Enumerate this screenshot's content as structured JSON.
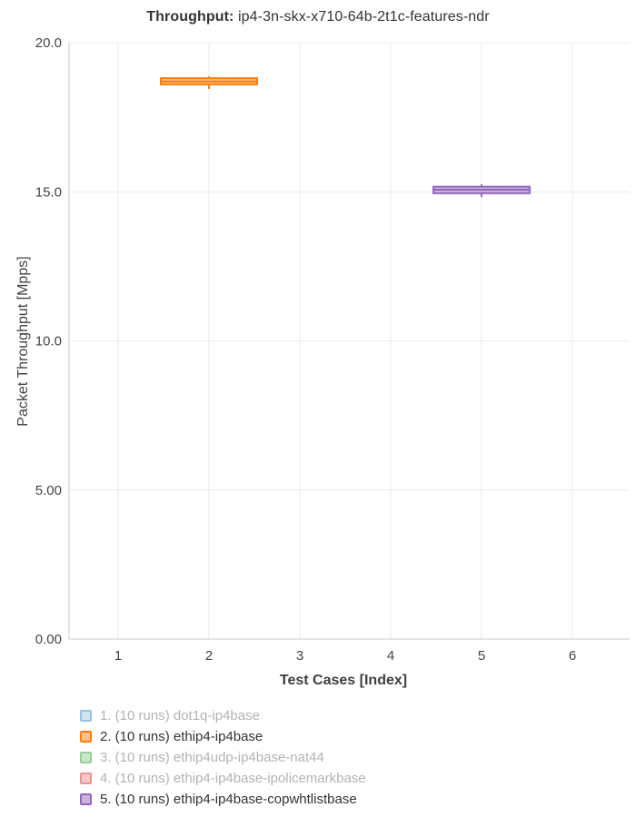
{
  "title": {
    "prefix": "Throughput:",
    "text": "ip4-3n-skx-x710-64b-2t1c-features-ndr"
  },
  "style": {
    "grid_color": "#ebebeb",
    "axis_color": "#c9c9c9",
    "tick_label_color": "#444444",
    "title_color": "#333333",
    "legend_active_color": "#333333",
    "legend_muted_color": "#b3b3b3"
  },
  "chart_data": {
    "type": "box",
    "title": "Throughput: ip4-3n-skx-x710-64b-2t1c-features-ndr",
    "xlabel": "Test Cases [Index]",
    "ylabel": "Packet Throughput [Mpps]",
    "xlim": [
      0.46,
      6.57
    ],
    "ylim": [
      0,
      20
    ],
    "grid": true,
    "legend_position": "bottom-left",
    "x_ticks": [
      {
        "value": 1,
        "label": "1"
      },
      {
        "value": 2,
        "label": "2"
      },
      {
        "value": 3,
        "label": "3"
      },
      {
        "value": 4,
        "label": "4"
      },
      {
        "value": 5,
        "label": "5"
      },
      {
        "value": 6,
        "label": "6"
      }
    ],
    "y_ticks": [
      {
        "value": 0,
        "label": "0.00"
      },
      {
        "value": 5,
        "label": "5.00"
      },
      {
        "value": 10,
        "label": "10.0"
      },
      {
        "value": 15,
        "label": "15.0"
      },
      {
        "value": 20,
        "label": "20.0"
      }
    ],
    "series": [
      {
        "index": 1,
        "name": "dot1q-ip4base",
        "runs": 10,
        "legend_label": "1. (10 runs) dot1q-ip4base",
        "visible": false,
        "line_color": "#98c4de",
        "fill_color": "#d2e4f0"
      },
      {
        "index": 2,
        "name": "ethip4-ip4base",
        "runs": 10,
        "legend_label": "2. (10 runs) ethip4-ip4base",
        "visible": true,
        "line_color": "#ff7f0e",
        "fill_color": "#ffbf86",
        "x": 2,
        "box_width": 1.06,
        "values": {
          "whisker_low": 18.45,
          "q1": 18.6,
          "median": 18.7,
          "q3": 18.81,
          "whisker_high": 18.87
        }
      },
      {
        "index": 3,
        "name": "ethip4udp-ip4base-nat44",
        "runs": 10,
        "legend_label": "3. (10 runs) ethip4udp-ip4base-nat44",
        "visible": false,
        "line_color": "#95cf95",
        "fill_color": "#cae7ca"
      },
      {
        "index": 4,
        "name": "ethip4-ip4base-ipolicemarkbase",
        "runs": 10,
        "legend_label": "4. (10 runs) ethip4-ip4base-ipolicemarkbase",
        "visible": false,
        "line_color": "#ea9393",
        "fill_color": "#f4c9c9"
      },
      {
        "index": 5,
        "name": "ethip4-ip4base-copwhtlistbase",
        "runs": 10,
        "legend_label": "5. (10 runs) ethip4-ip4base-copwhtlistbase",
        "visible": true,
        "line_color": "#9467bd",
        "fill_color": "#c9b3de",
        "x": 5,
        "box_width": 1.06,
        "values": {
          "whisker_low": 14.82,
          "q1": 14.95,
          "median": 15.07,
          "q3": 15.17,
          "whisker_high": 15.25
        }
      }
    ]
  }
}
